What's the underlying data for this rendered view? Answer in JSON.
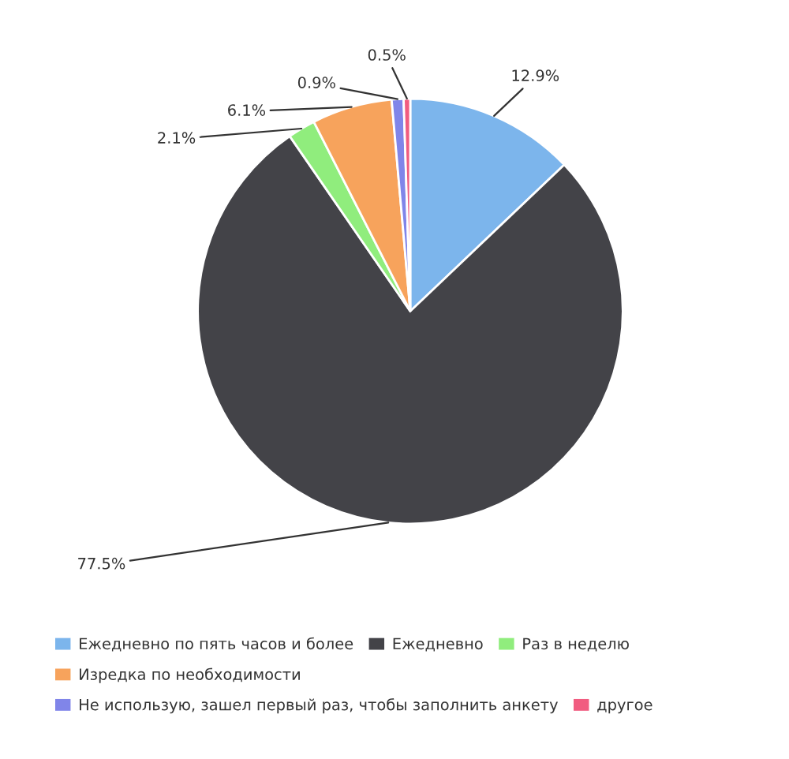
{
  "chart_data": {
    "type": "pie",
    "categories": [
      "Ежедневно по пять часов и более",
      "Ежедневно",
      "Раз в неделю",
      "Изредка по необходимости",
      "Не использую, зашел первый раз, чтобы заполнить анкету",
      "другое"
    ],
    "values": [
      12.9,
      77.5,
      2.1,
      6.1,
      0.9,
      0.5
    ],
    "colors": [
      "#7cb5ec",
      "#434348",
      "#90ed7d",
      "#f7a35c",
      "#8085e9",
      "#f15c80"
    ],
    "value_labels": [
      "12.9%",
      "77.5%",
      "2.1%",
      "6.1%",
      "0.9%",
      "0.5%"
    ],
    "legend": "bottom"
  }
}
